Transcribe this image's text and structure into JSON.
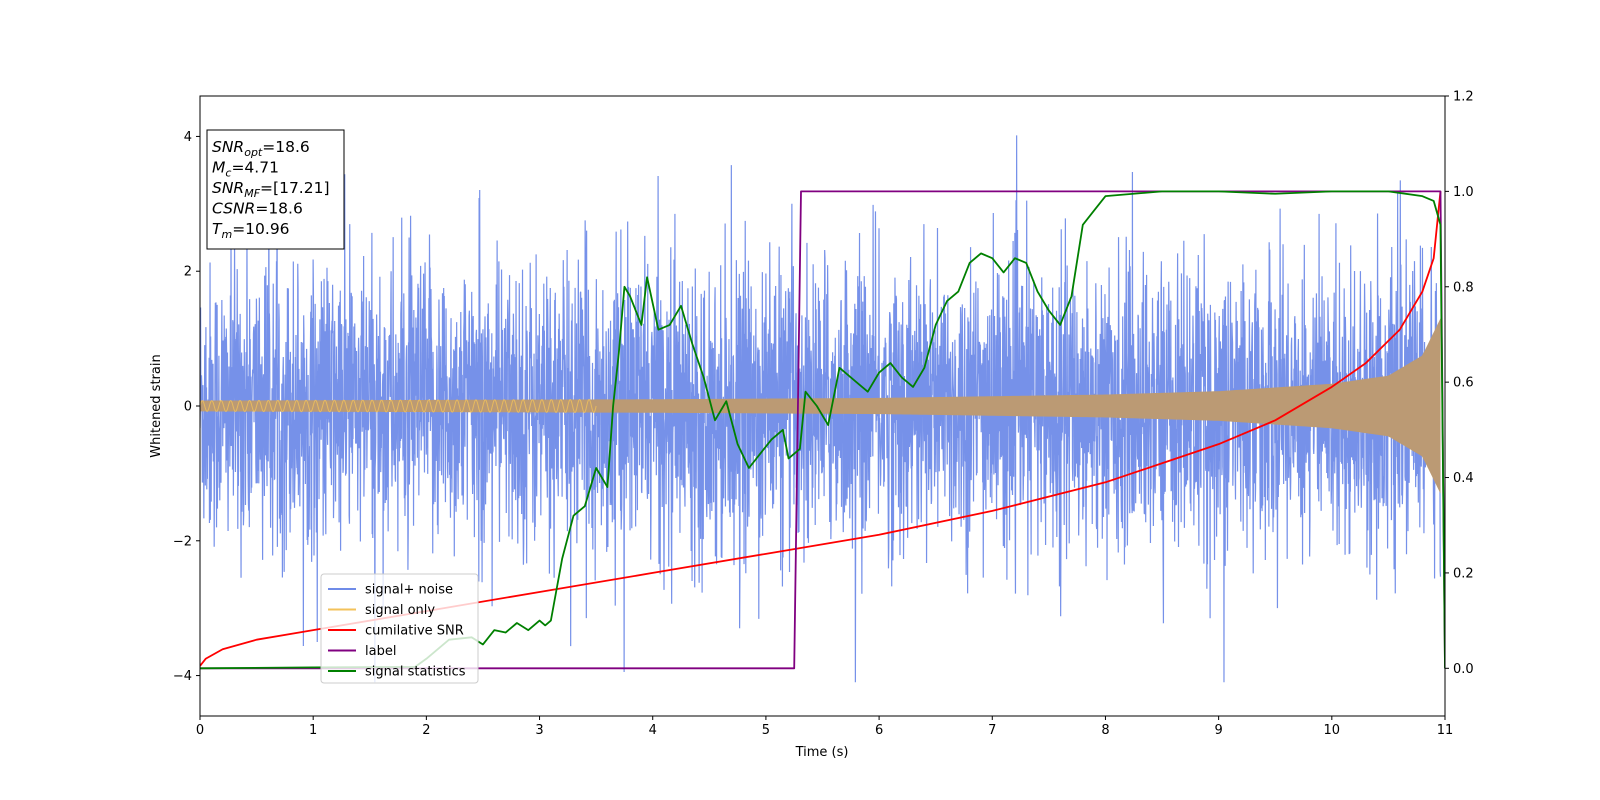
{
  "chart_data": {
    "type": "line",
    "xlabel": "Time (s)",
    "ylabel": "Whitened strain",
    "xlim": [
      0,
      11
    ],
    "ylim": [
      -4.6,
      4.6
    ],
    "y2lim": [
      -0.1,
      1.2
    ],
    "xticks": [
      "0",
      "1",
      "2",
      "3",
      "4",
      "5",
      "6",
      "7",
      "8",
      "9",
      "10",
      "11"
    ],
    "yticks": [
      "−4",
      "−2",
      "0",
      "2",
      "4"
    ],
    "y2ticks": [
      "0.0",
      "0.2",
      "0.4",
      "0.6",
      "0.8",
      "1.0",
      "1.2"
    ],
    "grid": false,
    "legend_position": "lower-left",
    "colors": {
      "noise": "#6f8be8",
      "signal": "#f3c25a",
      "cumulative": "#ff0000",
      "label": "#800080",
      "statistics": "#008000",
      "overlap": "#bb9a74"
    },
    "annotation": [
      {
        "main": "SNR",
        "sub": "opt",
        "rest": "=18.6"
      },
      {
        "main": "M",
        "sub": "c",
        "rest": "=4.71"
      },
      {
        "main": "SNR",
        "sub": "MF",
        "rest": "=[17.21]"
      },
      {
        "main": "CSNR",
        "sub": "",
        "rest": "=18.6"
      },
      {
        "main": "T",
        "sub": "m",
        "rest": "=10.96"
      }
    ],
    "series": [
      {
        "name": "signal+ noise",
        "axis": "left",
        "style": "noise band, mean 0, typical amplitude ±1.6, peaks to ±4.2"
      },
      {
        "name": "signal only",
        "axis": "left",
        "chirp_amplitude": {
          "x": [
            0,
            2,
            4,
            6,
            8,
            9,
            10,
            10.5,
            10.8,
            10.96
          ],
          "y": [
            0.08,
            0.09,
            0.1,
            0.12,
            0.17,
            0.22,
            0.33,
            0.45,
            0.75,
            1.3
          ]
        }
      },
      {
        "name": "cumilative SNR",
        "axis": "right",
        "x": [
          0,
          0.05,
          0.2,
          0.5,
          1,
          2,
          3,
          4,
          5,
          6,
          7,
          8,
          8.5,
          9,
          9.5,
          10,
          10.3,
          10.6,
          10.8,
          10.9,
          10.96
        ],
        "y": [
          0.005,
          0.02,
          0.04,
          0.06,
          0.08,
          0.12,
          0.16,
          0.2,
          0.24,
          0.28,
          0.33,
          0.39,
          0.43,
          0.47,
          0.52,
          0.59,
          0.64,
          0.71,
          0.79,
          0.86,
          1.0
        ]
      },
      {
        "name": "label",
        "axis": "right",
        "x": [
          0,
          5.25,
          5.31,
          10.96,
          11.0
        ],
        "y": [
          0,
          0,
          1,
          1,
          0.0
        ]
      },
      {
        "name": "signal statistics",
        "axis": "right",
        "x": [
          0,
          1,
          1.9,
          2.0,
          2.2,
          2.4,
          2.5,
          2.6,
          2.7,
          2.8,
          2.9,
          3.0,
          3.05,
          3.1,
          3.2,
          3.3,
          3.4,
          3.5,
          3.6,
          3.65,
          3.7,
          3.75,
          3.8,
          3.9,
          3.95,
          4.05,
          4.15,
          4.25,
          4.35,
          4.45,
          4.55,
          4.65,
          4.75,
          4.85,
          4.95,
          5.05,
          5.15,
          5.2,
          5.3,
          5.35,
          5.45,
          5.55,
          5.65,
          5.7,
          5.8,
          5.9,
          6.0,
          6.1,
          6.2,
          6.3,
          6.4,
          6.5,
          6.6,
          6.7,
          6.8,
          6.9,
          7.0,
          7.1,
          7.2,
          7.3,
          7.4,
          7.5,
          7.6,
          7.7,
          7.8,
          7.9,
          8.0,
          8.5,
          9.0,
          9.5,
          10.0,
          10.5,
          10.8,
          10.9,
          10.96,
          11.0
        ],
        "y": [
          0.0,
          0.002,
          0.003,
          0.02,
          0.06,
          0.065,
          0.05,
          0.08,
          0.075,
          0.095,
          0.08,
          0.1,
          0.09,
          0.1,
          0.23,
          0.32,
          0.34,
          0.42,
          0.38,
          0.55,
          0.66,
          0.8,
          0.78,
          0.72,
          0.82,
          0.71,
          0.72,
          0.76,
          0.68,
          0.61,
          0.52,
          0.56,
          0.47,
          0.42,
          0.45,
          0.48,
          0.5,
          0.44,
          0.46,
          0.58,
          0.55,
          0.51,
          0.63,
          0.62,
          0.6,
          0.58,
          0.62,
          0.64,
          0.61,
          0.59,
          0.63,
          0.72,
          0.77,
          0.79,
          0.85,
          0.87,
          0.86,
          0.83,
          0.86,
          0.85,
          0.79,
          0.75,
          0.72,
          0.78,
          0.93,
          0.96,
          0.99,
          1.0,
          1.0,
          0.995,
          1.0,
          1.0,
          0.99,
          0.98,
          0.93,
          0.0
        ]
      }
    ]
  }
}
